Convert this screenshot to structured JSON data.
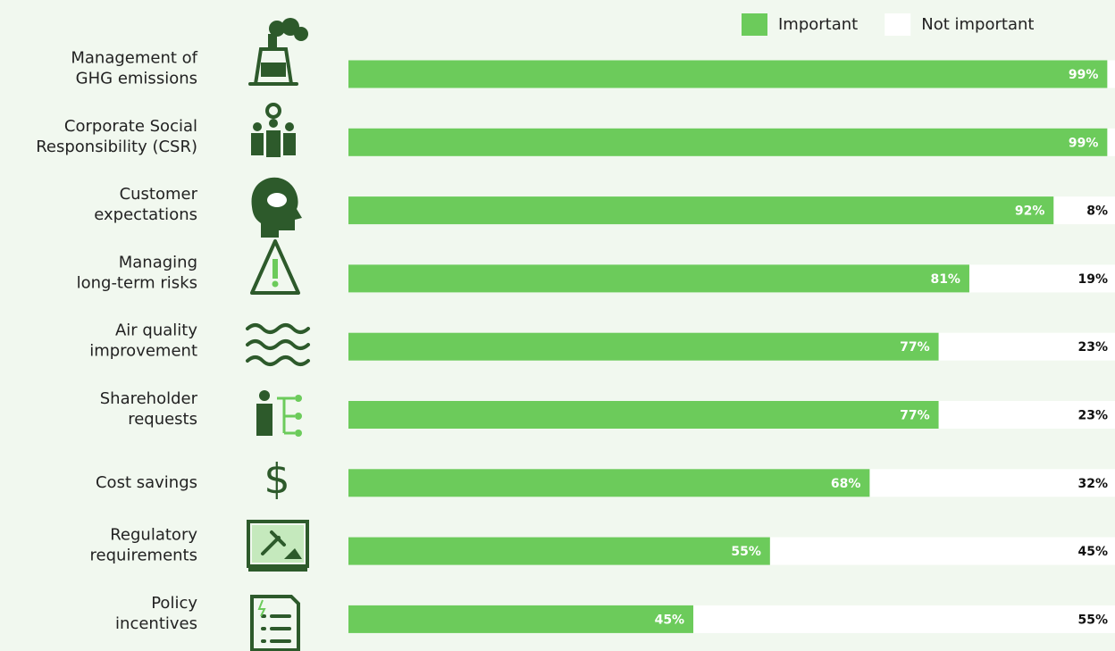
{
  "chart_data": {
    "type": "stacked-bar-horizontal",
    "categories": [
      [
        "Management of",
        "GHG emissions"
      ],
      [
        "Corporate Social",
        "Responsibility (CSR)"
      ],
      [
        "Customer",
        "expectations"
      ],
      [
        "Managing",
        "long-term risks"
      ],
      [
        "Air quality",
        "improvement"
      ],
      [
        "Shareholder",
        "requests"
      ],
      [
        "Cost savings"
      ],
      [
        "Regulatory",
        "requirements"
      ],
      [
        "Policy",
        "incentives"
      ]
    ],
    "series": [
      {
        "name": "Important",
        "color": "#6ccb5b",
        "values": [
          99,
          99,
          92,
          81,
          77,
          77,
          68,
          55,
          45
        ],
        "value_labels": [
          "99%",
          "99%",
          "92%",
          "81%",
          "77%",
          "77%",
          "68%",
          "55%",
          "45%"
        ]
      },
      {
        "name": "Not important",
        "color": "#ffffff",
        "values": [
          1,
          1,
          8,
          19,
          23,
          23,
          32,
          45,
          55
        ],
        "value_labels": [
          null,
          null,
          "8%",
          "19%",
          "23%",
          "23%",
          "32%",
          "45%",
          "55%"
        ]
      }
    ],
    "legend": "top-right"
  }
}
